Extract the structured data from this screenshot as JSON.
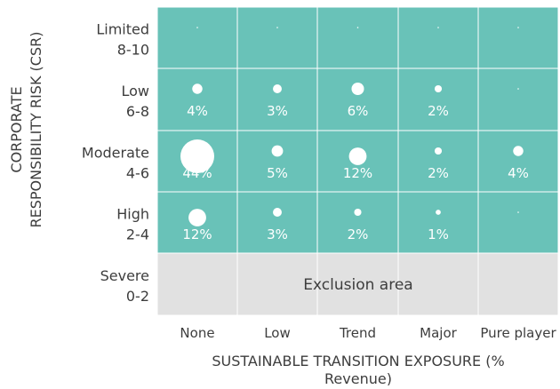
{
  "chart_data": {
    "type": "heatmap",
    "xlabel": "SUSTAINABLE TRANSITION EXPOSURE (% Revenue)",
    "ylabel": "CORPORATE RESPONSIBILITY RISK (CSR)",
    "x_categories": [
      "None",
      "Low",
      "Trend",
      "Major",
      "Pure player"
    ],
    "y_categories": [
      {
        "name": "Limited",
        "range": "8-10"
      },
      {
        "name": "Low",
        "range": "6-8"
      },
      {
        "name": "Moderate",
        "range": "4-6"
      },
      {
        "name": "High",
        "range": "2-4"
      },
      {
        "name": "Severe",
        "range": "0-2"
      }
    ],
    "values": [
      [
        0,
        0,
        0,
        0,
        0
      ],
      [
        4,
        3,
        6,
        2,
        0
      ],
      [
        44,
        5,
        12,
        2,
        4
      ],
      [
        12,
        3,
        2,
        1,
        0
      ],
      [
        null,
        null,
        null,
        null,
        null
      ]
    ],
    "cell_labels": [
      [
        "",
        "",
        "",
        "",
        ""
      ],
      [
        "4%",
        "3%",
        "6%",
        "2%",
        ""
      ],
      [
        "44%",
        "5%",
        "12%",
        "2%",
        "4%"
      ],
      [
        "12%",
        "3%",
        "2%",
        "1%",
        ""
      ],
      [
        "",
        "",
        "",
        "",
        ""
      ]
    ],
    "exclusion_label": "Exclusion area",
    "colors": {
      "active_cell": "#69c2b8",
      "exclusion_cell": "#e1e1e1",
      "bubble": "#ffffff",
      "text": "#3d3d3d"
    }
  }
}
